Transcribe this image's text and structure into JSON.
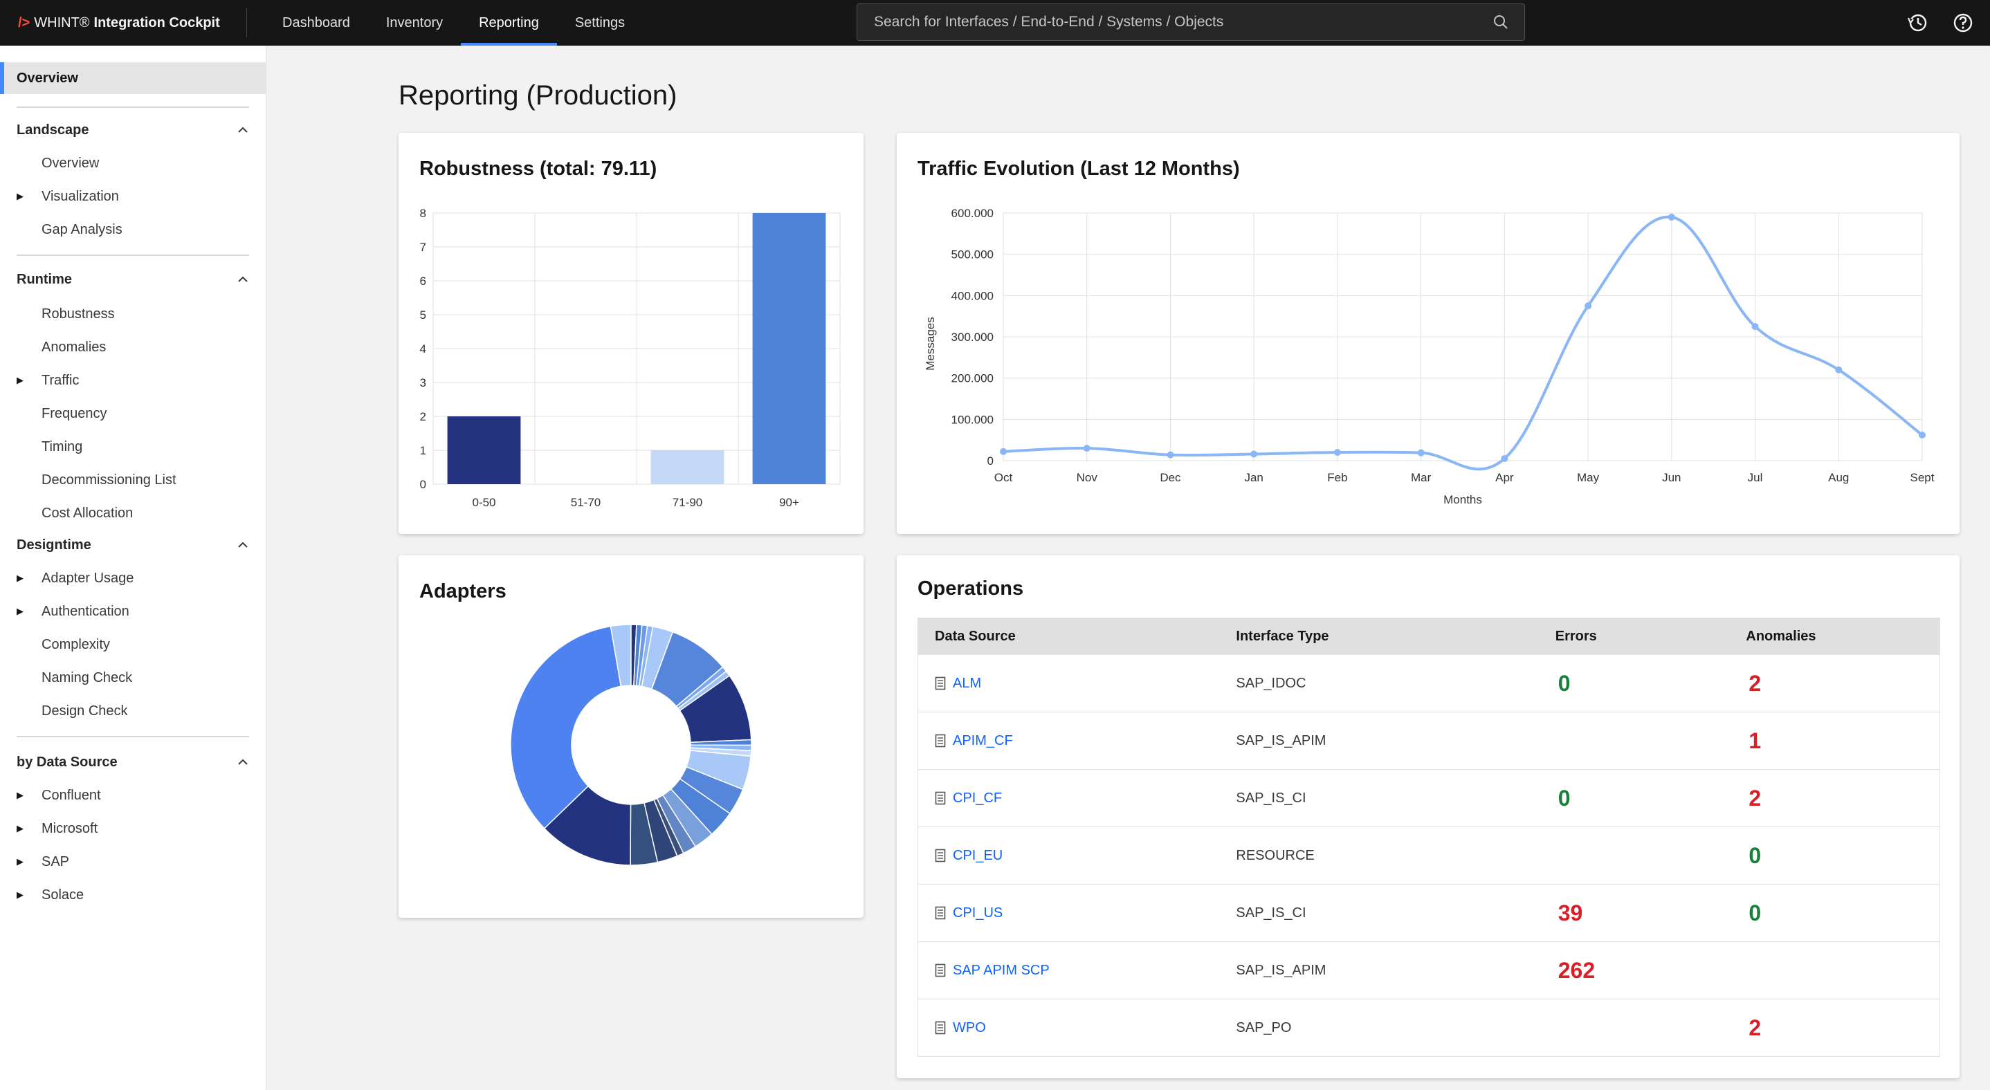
{
  "app": {
    "brand_mark": "/>",
    "brand_name": "WHINT®",
    "brand_product": "Integration Cockpit"
  },
  "nav": {
    "items": [
      {
        "label": "Dashboard",
        "active": false
      },
      {
        "label": "Inventory",
        "active": false
      },
      {
        "label": "Reporting",
        "active": true
      },
      {
        "label": "Settings",
        "active": false
      }
    ]
  },
  "search": {
    "placeholder": "Search for Interfaces / End-to-End / Systems / Objects",
    "value": ""
  },
  "header_icons": [
    "history-icon",
    "help-icon"
  ],
  "sidebar": {
    "overview": "Overview",
    "sections": [
      {
        "title": "Landscape",
        "expanded": true,
        "items": [
          {
            "label": "Overview",
            "has_children": false
          },
          {
            "label": "Visualization",
            "has_children": true
          },
          {
            "label": "Gap Analysis",
            "has_children": false
          }
        ]
      },
      {
        "title": "Runtime",
        "expanded": true,
        "items": [
          {
            "label": "Robustness",
            "has_children": false
          },
          {
            "label": "Anomalies",
            "has_children": false
          },
          {
            "label": "Traffic",
            "has_children": true
          },
          {
            "label": "Frequency",
            "has_children": false
          },
          {
            "label": "Timing",
            "has_children": false
          },
          {
            "label": "Decommissioning List",
            "has_children": false
          },
          {
            "label": "Cost Allocation",
            "has_children": false
          }
        ]
      },
      {
        "title": "Designtime",
        "expanded": true,
        "items": [
          {
            "label": "Adapter Usage",
            "has_children": true
          },
          {
            "label": "Authentication",
            "has_children": true
          },
          {
            "label": "Complexity",
            "has_children": false
          },
          {
            "label": "Naming Check",
            "has_children": false
          },
          {
            "label": "Design Check",
            "has_children": false
          }
        ]
      },
      {
        "title": "by Data Source",
        "expanded": true,
        "items": [
          {
            "label": "Confluent",
            "has_children": true
          },
          {
            "label": "Microsoft",
            "has_children": true
          },
          {
            "label": "SAP",
            "has_children": true
          },
          {
            "label": "Solace",
            "has_children": true
          }
        ]
      }
    ]
  },
  "page": {
    "title": "Reporting (Production)"
  },
  "cards": {
    "robustness_title": "Robustness (total: 79.11)",
    "traffic_title": "Traffic Evolution (Last 12 Months)",
    "adapters_title": "Adapters",
    "operations_title": "Operations"
  },
  "chart_data": [
    {
      "type": "bar",
      "title": "Robustness (total: 79.11)",
      "categories": [
        "0-50",
        "51-70",
        "71-90",
        "90+"
      ],
      "values": [
        2,
        0,
        1,
        8
      ],
      "colors": [
        "#24337f",
        "#24337f",
        "#c4d9f7",
        "#4e82d6"
      ],
      "ylim": [
        0,
        8
      ],
      "yticks": [
        "0",
        "1",
        "2",
        "3",
        "4",
        "5",
        "6",
        "7",
        "8"
      ],
      "grid": true
    },
    {
      "type": "line",
      "title": "Traffic Evolution (Last 12 Months)",
      "xlabel": "Months",
      "ylabel": "Messages",
      "categories": [
        "Oct",
        "Nov",
        "Dec",
        "Jan",
        "Feb",
        "Mar",
        "Apr",
        "May",
        "Jun",
        "Jul",
        "Aug",
        "Sept"
      ],
      "values": [
        22000,
        30000,
        14000,
        16000,
        20000,
        19000,
        5000,
        375000,
        590000,
        325000,
        220000,
        62000
      ],
      "ylim": [
        0,
        600000
      ],
      "yticks": [
        "0",
        "100.000",
        "200.000",
        "300.000",
        "400.000",
        "500.000",
        "600.000"
      ],
      "color": "#8ab6f5",
      "grid": true
    },
    {
      "type": "pie",
      "title": "Adapters",
      "donut": true,
      "values": [
        3,
        0.8,
        0.8,
        0.8,
        0.8,
        3,
        9,
        0.8,
        0.8,
        10,
        0.8,
        0.8,
        0.8,
        5,
        4,
        4,
        3,
        2,
        1,
        3,
        4,
        14,
        38
      ],
      "colors": [
        "#a8c8f8",
        "#24337f",
        "#4e82d6",
        "#6b9be8",
        "#8ab6f5",
        "#a8c8f8",
        "#5586d9",
        "#7aa7ef",
        "#9ec2f7",
        "#24337f",
        "#4e82d6",
        "#8ab6f5",
        "#c4d9f7",
        "#a8c8f8",
        "#5586d9",
        "#4e82d6",
        "#7aa0dc",
        "#6285c4",
        "#3a4f7a",
        "#2f4577",
        "#34507f",
        "#24337f",
        "#4d82f0"
      ]
    }
  ],
  "operations": {
    "columns": [
      "Data Source",
      "Interface Type",
      "Errors",
      "Anomalies"
    ],
    "rows": [
      {
        "source": "ALM",
        "type": "SAP_IDOC",
        "errors": "0",
        "errors_status": "ok",
        "anomalies": "2",
        "anomalies_status": "bad"
      },
      {
        "source": "APIM_CF",
        "type": "SAP_IS_APIM",
        "errors": "",
        "errors_status": "none",
        "anomalies": "1",
        "anomalies_status": "bad"
      },
      {
        "source": "CPI_CF",
        "type": "SAP_IS_CI",
        "errors": "0",
        "errors_status": "ok",
        "anomalies": "2",
        "anomalies_status": "bad"
      },
      {
        "source": "CPI_EU",
        "type": "RESOURCE",
        "errors": "",
        "errors_status": "none",
        "anomalies": "0",
        "anomalies_status": "ok"
      },
      {
        "source": "CPI_US",
        "type": "SAP_IS_CI",
        "errors": "39",
        "errors_status": "bad",
        "anomalies": "0",
        "anomalies_status": "ok"
      },
      {
        "source": "SAP APIM SCP",
        "type": "SAP_IS_APIM",
        "errors": "262",
        "errors_status": "bad",
        "anomalies": "",
        "anomalies_status": "none"
      },
      {
        "source": "WPO",
        "type": "SAP_PO",
        "errors": "",
        "errors_status": "none",
        "anomalies": "2",
        "anomalies_status": "bad"
      }
    ]
  },
  "colors": {
    "ok": "#198038",
    "bad": "#da1e28",
    "accent": "#4589ff",
    "link": "#0f62fe"
  }
}
